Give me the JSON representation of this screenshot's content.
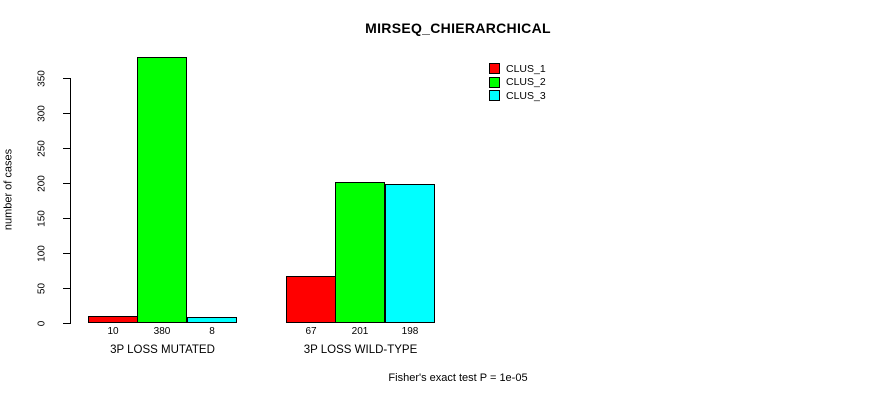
{
  "chart_data": {
    "type": "bar",
    "title": "MIRSEQ_CHIERARCHICAL",
    "ylabel": "number of cases",
    "xlabel": "",
    "groups": [
      "3P LOSS MUTATED",
      "3P LOSS WILD-TYPE"
    ],
    "series": [
      {
        "name": "CLUS_1",
        "color": "#ff0000",
        "values": [
          10,
          67
        ]
      },
      {
        "name": "CLUS_2",
        "color": "#00ff00",
        "values": [
          380,
          201
        ]
      },
      {
        "name": "CLUS_3",
        "color": "#00ffff",
        "values": [
          8,
          198
        ]
      }
    ],
    "bar_value_labels": [
      [
        10,
        380,
        8
      ],
      [
        67,
        201,
        198
      ]
    ],
    "yticks": [
      0,
      50,
      100,
      150,
      200,
      250,
      300,
      350
    ],
    "ylim": [
      0,
      380
    ],
    "grid": false,
    "legend_position": "top-right",
    "footnote": "Fisher's exact test P = 1e-05",
    "axis_color": "#000000",
    "background_color": "#ffffff"
  }
}
